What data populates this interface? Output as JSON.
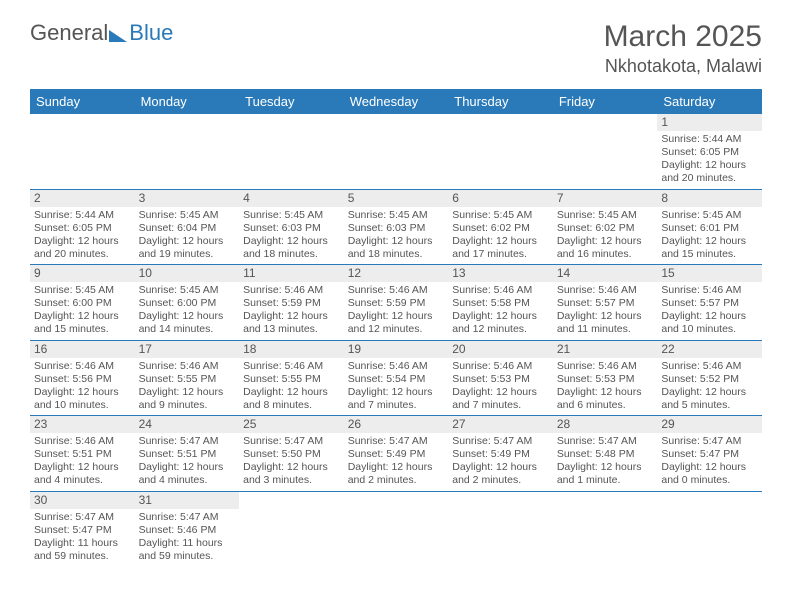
{
  "logo": {
    "general": "General",
    "blue": "Blue"
  },
  "title": "March 2025",
  "location": "Nkhotakota, Malawi",
  "colors": {
    "accent": "#2a7ab9",
    "text": "#555555",
    "row_shade": "#ededed",
    "background": "#ffffff"
  },
  "days_of_week": [
    "Sunday",
    "Monday",
    "Tuesday",
    "Wednesday",
    "Thursday",
    "Friday",
    "Saturday"
  ],
  "weeks": [
    [
      null,
      null,
      null,
      null,
      null,
      null,
      {
        "n": "1",
        "sr": "Sunrise: 5:44 AM",
        "ss": "Sunset: 6:05 PM",
        "dl": "Daylight: 12 hours and 20 minutes."
      }
    ],
    [
      {
        "n": "2",
        "sr": "Sunrise: 5:44 AM",
        "ss": "Sunset: 6:05 PM",
        "dl": "Daylight: 12 hours and 20 minutes."
      },
      {
        "n": "3",
        "sr": "Sunrise: 5:45 AM",
        "ss": "Sunset: 6:04 PM",
        "dl": "Daylight: 12 hours and 19 minutes."
      },
      {
        "n": "4",
        "sr": "Sunrise: 5:45 AM",
        "ss": "Sunset: 6:03 PM",
        "dl": "Daylight: 12 hours and 18 minutes."
      },
      {
        "n": "5",
        "sr": "Sunrise: 5:45 AM",
        "ss": "Sunset: 6:03 PM",
        "dl": "Daylight: 12 hours and 18 minutes."
      },
      {
        "n": "6",
        "sr": "Sunrise: 5:45 AM",
        "ss": "Sunset: 6:02 PM",
        "dl": "Daylight: 12 hours and 17 minutes."
      },
      {
        "n": "7",
        "sr": "Sunrise: 5:45 AM",
        "ss": "Sunset: 6:02 PM",
        "dl": "Daylight: 12 hours and 16 minutes."
      },
      {
        "n": "8",
        "sr": "Sunrise: 5:45 AM",
        "ss": "Sunset: 6:01 PM",
        "dl": "Daylight: 12 hours and 15 minutes."
      }
    ],
    [
      {
        "n": "9",
        "sr": "Sunrise: 5:45 AM",
        "ss": "Sunset: 6:00 PM",
        "dl": "Daylight: 12 hours and 15 minutes."
      },
      {
        "n": "10",
        "sr": "Sunrise: 5:45 AM",
        "ss": "Sunset: 6:00 PM",
        "dl": "Daylight: 12 hours and 14 minutes."
      },
      {
        "n": "11",
        "sr": "Sunrise: 5:46 AM",
        "ss": "Sunset: 5:59 PM",
        "dl": "Daylight: 12 hours and 13 minutes."
      },
      {
        "n": "12",
        "sr": "Sunrise: 5:46 AM",
        "ss": "Sunset: 5:59 PM",
        "dl": "Daylight: 12 hours and 12 minutes."
      },
      {
        "n": "13",
        "sr": "Sunrise: 5:46 AM",
        "ss": "Sunset: 5:58 PM",
        "dl": "Daylight: 12 hours and 12 minutes."
      },
      {
        "n": "14",
        "sr": "Sunrise: 5:46 AM",
        "ss": "Sunset: 5:57 PM",
        "dl": "Daylight: 12 hours and 11 minutes."
      },
      {
        "n": "15",
        "sr": "Sunrise: 5:46 AM",
        "ss": "Sunset: 5:57 PM",
        "dl": "Daylight: 12 hours and 10 minutes."
      }
    ],
    [
      {
        "n": "16",
        "sr": "Sunrise: 5:46 AM",
        "ss": "Sunset: 5:56 PM",
        "dl": "Daylight: 12 hours and 10 minutes."
      },
      {
        "n": "17",
        "sr": "Sunrise: 5:46 AM",
        "ss": "Sunset: 5:55 PM",
        "dl": "Daylight: 12 hours and 9 minutes."
      },
      {
        "n": "18",
        "sr": "Sunrise: 5:46 AM",
        "ss": "Sunset: 5:55 PM",
        "dl": "Daylight: 12 hours and 8 minutes."
      },
      {
        "n": "19",
        "sr": "Sunrise: 5:46 AM",
        "ss": "Sunset: 5:54 PM",
        "dl": "Daylight: 12 hours and 7 minutes."
      },
      {
        "n": "20",
        "sr": "Sunrise: 5:46 AM",
        "ss": "Sunset: 5:53 PM",
        "dl": "Daylight: 12 hours and 7 minutes."
      },
      {
        "n": "21",
        "sr": "Sunrise: 5:46 AM",
        "ss": "Sunset: 5:53 PM",
        "dl": "Daylight: 12 hours and 6 minutes."
      },
      {
        "n": "22",
        "sr": "Sunrise: 5:46 AM",
        "ss": "Sunset: 5:52 PM",
        "dl": "Daylight: 12 hours and 5 minutes."
      }
    ],
    [
      {
        "n": "23",
        "sr": "Sunrise: 5:46 AM",
        "ss": "Sunset: 5:51 PM",
        "dl": "Daylight: 12 hours and 4 minutes."
      },
      {
        "n": "24",
        "sr": "Sunrise: 5:47 AM",
        "ss": "Sunset: 5:51 PM",
        "dl": "Daylight: 12 hours and 4 minutes."
      },
      {
        "n": "25",
        "sr": "Sunrise: 5:47 AM",
        "ss": "Sunset: 5:50 PM",
        "dl": "Daylight: 12 hours and 3 minutes."
      },
      {
        "n": "26",
        "sr": "Sunrise: 5:47 AM",
        "ss": "Sunset: 5:49 PM",
        "dl": "Daylight: 12 hours and 2 minutes."
      },
      {
        "n": "27",
        "sr": "Sunrise: 5:47 AM",
        "ss": "Sunset: 5:49 PM",
        "dl": "Daylight: 12 hours and 2 minutes."
      },
      {
        "n": "28",
        "sr": "Sunrise: 5:47 AM",
        "ss": "Sunset: 5:48 PM",
        "dl": "Daylight: 12 hours and 1 minute."
      },
      {
        "n": "29",
        "sr": "Sunrise: 5:47 AM",
        "ss": "Sunset: 5:47 PM",
        "dl": "Daylight: 12 hours and 0 minutes."
      }
    ],
    [
      {
        "n": "30",
        "sr": "Sunrise: 5:47 AM",
        "ss": "Sunset: 5:47 PM",
        "dl": "Daylight: 11 hours and 59 minutes."
      },
      {
        "n": "31",
        "sr": "Sunrise: 5:47 AM",
        "ss": "Sunset: 5:46 PM",
        "dl": "Daylight: 11 hours and 59 minutes."
      },
      null,
      null,
      null,
      null,
      null
    ]
  ]
}
